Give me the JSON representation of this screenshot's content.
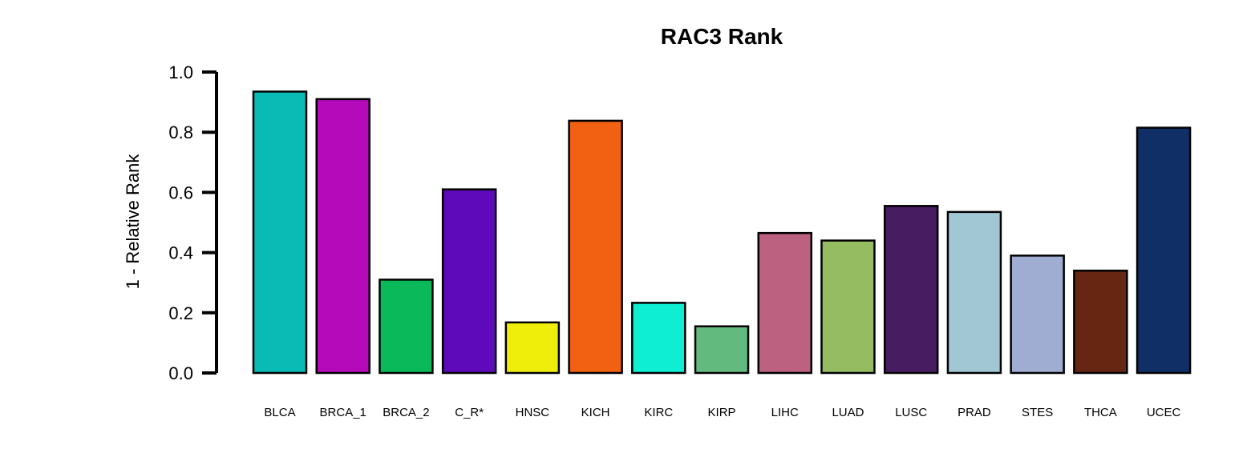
{
  "chart_data": {
    "type": "bar",
    "title": "RAC3 Rank",
    "xlabel": "",
    "ylabel": "1 - Relative Rank",
    "ylim": [
      0,
      1
    ],
    "yticks": [
      0.0,
      0.2,
      0.4,
      0.6,
      0.8,
      1.0
    ],
    "ytick_labels": [
      "0.0",
      "0.2",
      "0.4",
      "0.6",
      "0.8",
      "1.0"
    ],
    "grid": false,
    "legend": "none",
    "categories": [
      "BLCA",
      "BRCA_1",
      "BRCA_2",
      "C_R*",
      "HNSC",
      "KICH",
      "KIRC",
      "KIRP",
      "LIHC",
      "LUAD",
      "LUSC",
      "PRAD",
      "STES",
      "THCA",
      "UCEC"
    ],
    "values": [
      0.935,
      0.91,
      0.31,
      0.61,
      0.168,
      0.838,
      0.233,
      0.155,
      0.465,
      0.44,
      0.555,
      0.535,
      0.39,
      0.34,
      0.815
    ],
    "colors": [
      "#0ABAB5",
      "#B40ABA",
      "#0ABA5A",
      "#5E0ABA",
      "#EEEE0A",
      "#F26111",
      "#0EEED3",
      "#62BA7E",
      "#BD6180",
      "#96BC62",
      "#471C61",
      "#A1C6D4",
      "#A0ADD3",
      "#662611",
      "#0F2F66"
    ]
  }
}
